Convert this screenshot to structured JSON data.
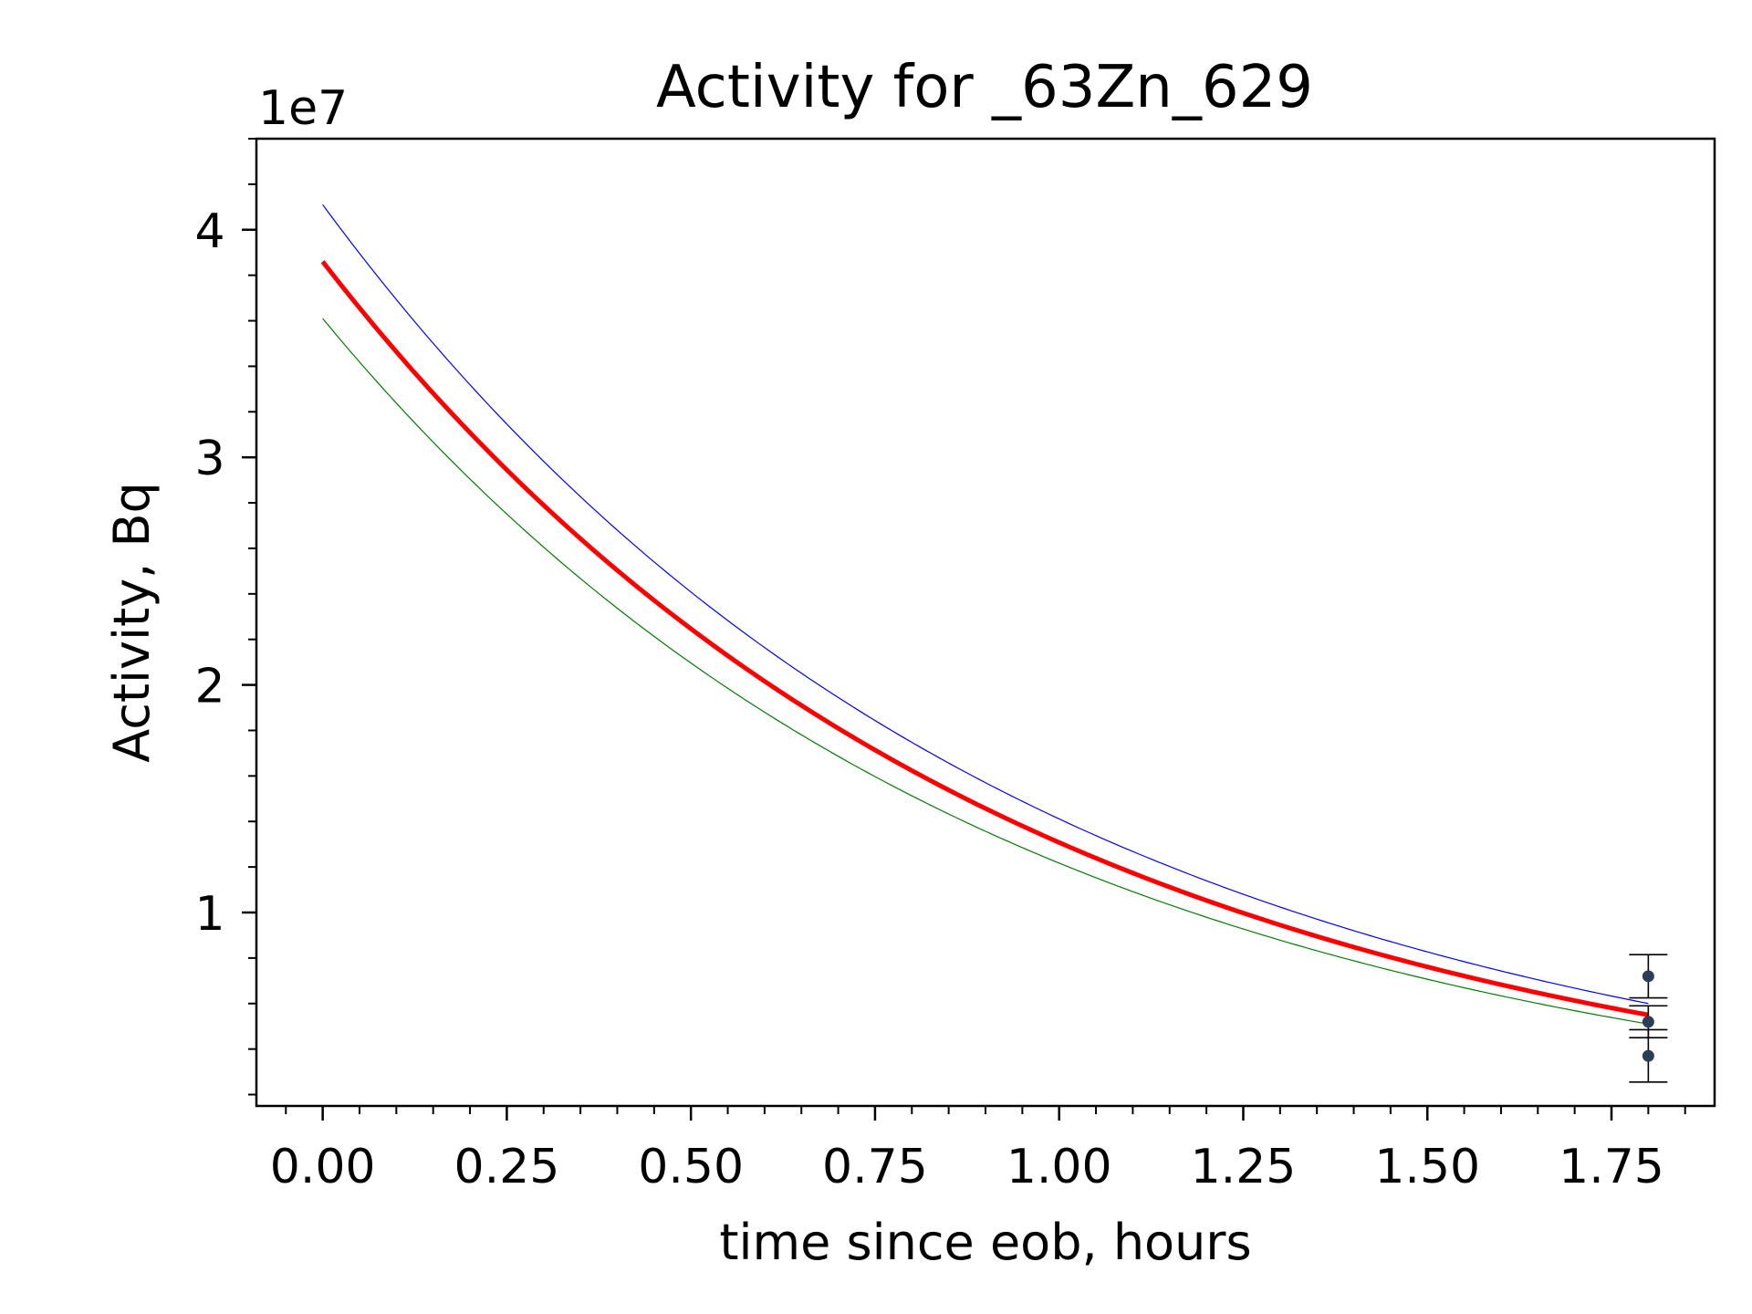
{
  "chart_data": {
    "type": "line",
    "title": "Activity for _63Zn_629",
    "xlabel": "time since eob, hours",
    "ylabel": "Activity, Bq",
    "y_offset_label": "1e7",
    "xlim": [
      -0.09,
      1.89
    ],
    "ylim": [
      0.15,
      4.4
    ],
    "y_scale_factor": 10000000,
    "x_ticks": [
      0.0,
      0.25,
      0.5,
      0.75,
      1.0,
      1.25,
      1.5,
      1.75
    ],
    "x_tick_labels": [
      "0.00",
      "0.25",
      "0.50",
      "0.75",
      "1.00",
      "1.25",
      "1.50",
      "1.75"
    ],
    "y_ticks": [
      1,
      2,
      3,
      4
    ],
    "y_tick_labels": [
      "1",
      "2",
      "3",
      "4"
    ],
    "grid": false,
    "series": [
      {
        "color": "#0000ff",
        "width": 1.2,
        "A0": 4.11,
        "A_end": 0.6,
        "t_start": 0.0,
        "t_end": 1.8
      },
      {
        "color": "#ff0000",
        "width": 5.0,
        "A0": 3.86,
        "A_end": 0.55,
        "t_start": 0.0,
        "t_end": 1.8
      },
      {
        "color": "#007f00",
        "width": 1.2,
        "A0": 3.61,
        "A_end": 0.51,
        "t_start": 0.0,
        "t_end": 1.8
      }
    ],
    "points": [
      {
        "x": 1.8,
        "y": 0.72,
        "yerr": 0.095
      },
      {
        "x": 1.8,
        "y": 0.52,
        "yerr": 0.07
      },
      {
        "x": 1.8,
        "y": 0.37,
        "yerr": 0.115
      }
    ],
    "colors": {
      "point": "#2c3e55",
      "errorbar": "#000000",
      "axes": "#000000"
    }
  }
}
